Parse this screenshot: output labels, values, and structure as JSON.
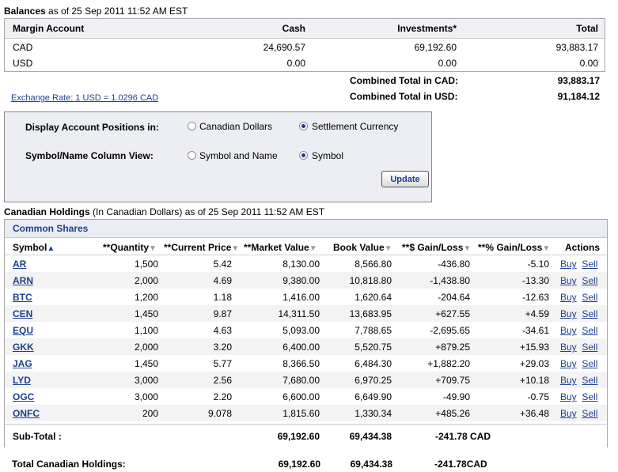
{
  "balances": {
    "title": "Balances",
    "asof": " as of 25 Sep 2011 11:52 AM EST",
    "headers": {
      "account": "Margin Account",
      "cash": "Cash",
      "investments": "Investments*",
      "total": "Total"
    },
    "rows": [
      {
        "currency": "CAD",
        "cash": "24,690.57",
        "investments": "69,192.60",
        "total": "93,883.17"
      },
      {
        "currency": "USD",
        "cash": "0.00",
        "investments": "0.00",
        "total": "0.00"
      }
    ],
    "combined_cad_label": "Combined Total in CAD:",
    "combined_cad_value": "93,883.17",
    "combined_usd_label": "Combined Total in USD:",
    "combined_usd_value": "91,184.12",
    "exchange_rate": "Exchange Rate: 1 USD = 1.0296 CAD"
  },
  "options": {
    "display_label": "Display Account Positions in:",
    "display_opt1": "Canadian Dollars",
    "display_opt2": "Settlement Currency",
    "view_label": "Symbol/Name Column View:",
    "view_opt1": "Symbol and Name",
    "view_opt2": "Symbol",
    "update": "Update"
  },
  "holdings": {
    "title": "Canadian Holdings",
    "subtitle": " (In Canadian Dollars) as of 25 Sep 2011 11:52 AM EST",
    "section": "Common Shares",
    "columns": {
      "symbol": "Symbol",
      "quantity": "**Quantity",
      "price": "**Current Price",
      "market": "**Market Value",
      "book": "Book Value",
      "gain": "**$ Gain/Loss",
      "pct": "**% Gain/Loss",
      "actions": "Actions"
    },
    "buy_label": "Buy",
    "sell_label": "Sell",
    "rows": [
      {
        "symbol": "AR",
        "quantity": "1,500",
        "price": "5.42",
        "market": "8,130.00",
        "book": "8,566.80",
        "gain": "-436.80",
        "pct": "-5.10"
      },
      {
        "symbol": "ARN",
        "quantity": "2,000",
        "price": "4.69",
        "market": "9,380.00",
        "book": "10,818.80",
        "gain": "-1,438.80",
        "pct": "-13.30"
      },
      {
        "symbol": "BTC",
        "quantity": "1,200",
        "price": "1.18",
        "market": "1,416.00",
        "book": "1,620.64",
        "gain": "-204.64",
        "pct": "-12.63"
      },
      {
        "symbol": "CEN",
        "quantity": "1,450",
        "price": "9.87",
        "market": "14,311.50",
        "book": "13,683.95",
        "gain": "+627.55",
        "pct": "+4.59"
      },
      {
        "symbol": "EQU",
        "quantity": "1,100",
        "price": "4.63",
        "market": "5,093.00",
        "book": "7,788.65",
        "gain": "-2,695.65",
        "pct": "-34.61"
      },
      {
        "symbol": "GKK",
        "quantity": "2,000",
        "price": "3.20",
        "market": "6,400.00",
        "book": "5,520.75",
        "gain": "+879.25",
        "pct": "+15.93"
      },
      {
        "symbol": "JAG",
        "quantity": "1,450",
        "price": "5.77",
        "market": "8,366.50",
        "book": "6,484.30",
        "gain": "+1,882.20",
        "pct": "+29.03"
      },
      {
        "symbol": "LYD",
        "quantity": "3,000",
        "price": "2.56",
        "market": "7,680.00",
        "book": "6,970.25",
        "gain": "+709.75",
        "pct": "+10.18"
      },
      {
        "symbol": "OGC",
        "quantity": "3,000",
        "price": "2.20",
        "market": "6,600.00",
        "book": "6,649.90",
        "gain": "-49.90",
        "pct": "-0.75"
      },
      {
        "symbol": "ONFC",
        "quantity": "200",
        "price": "9.078",
        "market": "1,815.60",
        "book": "1,330.34",
        "gain": "+485.26",
        "pct": "+36.48"
      }
    ],
    "subtotal": {
      "label": "Sub-Total :",
      "market": "69,192.60",
      "book": "69,434.38",
      "gain": "-241.78 CAD"
    },
    "total": {
      "label": "Total Canadian Holdings:",
      "market": "69,192.60",
      "book": "69,434.38",
      "gain": "-241.78CAD"
    }
  }
}
